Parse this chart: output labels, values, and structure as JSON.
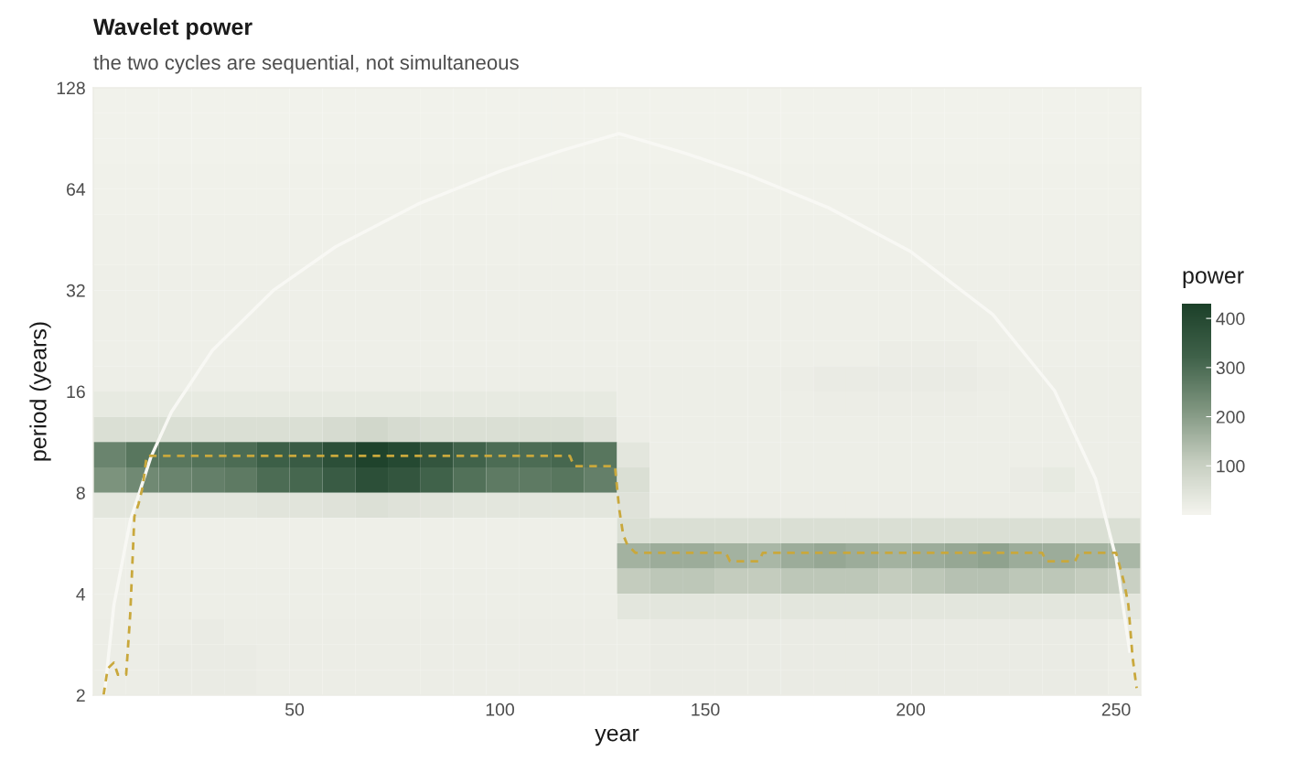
{
  "chart_data": [
    {
      "type": "heatmap",
      "title": "Wavelet power",
      "subtitle": "the two cycles are sequential, not simultaneous",
      "clabel": "power",
      "categories": [
        null,
        null,
        null,
        null,
        null,
        null,
        null,
        null,
        null,
        null,
        null,
        null,
        null,
        null,
        null,
        null,
        null,
        null,
        null,
        null,
        null,
        null,
        null,
        null,
        null,
        null,
        null,
        null,
        null,
        null,
        null,
        null
      ],
      "y_categories": [
        null,
        null,
        null,
        null,
        null,
        null,
        null,
        null,
        null,
        null,
        null,
        null,
        null,
        null,
        null,
        null,
        null,
        null,
        null,
        null,
        null,
        null,
        null,
        null
      ],
      "cells": [
        [
          8,
          8,
          8,
          8,
          8,
          8,
          8,
          8,
          8,
          8,
          8,
          8,
          8,
          8,
          8,
          8,
          8,
          8,
          8,
          8,
          8,
          8,
          8,
          8,
          8,
          8,
          8,
          8,
          8,
          8,
          8,
          8
        ],
        [
          8,
          8,
          8,
          8,
          8,
          8,
          8,
          8,
          8,
          8,
          8,
          8,
          8,
          8,
          8,
          8,
          8,
          8,
          8,
          8,
          8,
          8,
          8,
          8,
          8,
          8,
          8,
          8,
          8,
          8,
          8,
          8
        ],
        [
          8,
          8,
          8,
          8,
          8,
          8,
          8,
          8,
          8,
          8,
          8,
          8,
          8,
          8,
          8,
          8,
          8,
          8,
          8,
          8,
          8,
          8,
          8,
          8,
          8,
          8,
          8,
          8,
          8,
          8,
          8,
          8
        ],
        [
          10,
          10,
          10,
          10,
          10,
          10,
          10,
          10,
          10,
          10,
          10,
          10,
          10,
          10,
          10,
          10,
          10,
          10,
          10,
          10,
          10,
          10,
          10,
          10,
          10,
          10,
          10,
          10,
          10,
          10,
          10,
          10
        ],
        [
          10,
          10,
          10,
          10,
          10,
          10,
          10,
          10,
          10,
          10,
          10,
          10,
          10,
          10,
          10,
          10,
          10,
          10,
          10,
          10,
          10,
          10,
          10,
          10,
          10,
          10,
          10,
          10,
          10,
          10,
          10,
          10
        ],
        [
          12,
          12,
          12,
          12,
          12,
          12,
          12,
          12,
          12,
          12,
          12,
          12,
          12,
          12,
          12,
          12,
          12,
          12,
          12,
          12,
          12,
          12,
          12,
          12,
          12,
          12,
          12,
          12,
          12,
          12,
          12,
          12
        ],
        [
          12,
          12,
          12,
          12,
          12,
          12,
          12,
          12,
          12,
          12,
          12,
          12,
          12,
          12,
          12,
          12,
          12,
          12,
          12,
          12,
          12,
          12,
          12,
          12,
          12,
          12,
          12,
          12,
          12,
          12,
          12,
          12
        ],
        [
          14,
          14,
          14,
          14,
          14,
          14,
          14,
          14,
          14,
          14,
          14,
          14,
          14,
          14,
          14,
          14,
          14,
          14,
          14,
          14,
          14,
          14,
          14,
          14,
          14,
          14,
          14,
          14,
          14,
          14,
          14,
          14
        ],
        [
          14,
          14,
          14,
          14,
          14,
          14,
          14,
          14,
          14,
          14,
          14,
          14,
          14,
          14,
          14,
          14,
          14,
          14,
          14,
          14,
          14,
          14,
          14,
          14,
          14,
          14,
          14,
          14,
          14,
          14,
          14,
          14
        ],
        [
          14,
          14,
          14,
          14,
          14,
          14,
          14,
          14,
          14,
          14,
          14,
          14,
          14,
          14,
          14,
          14,
          14,
          14,
          14,
          14,
          14,
          14,
          14,
          14,
          14,
          14,
          14,
          14,
          14,
          14,
          14,
          14
        ],
        [
          15,
          15,
          15,
          15,
          15,
          15,
          15,
          15,
          15,
          15,
          15,
          15,
          15,
          15,
          15,
          15,
          15,
          15,
          15,
          15,
          15,
          15,
          15,
          15,
          20,
          20,
          20,
          15,
          15,
          15,
          15,
          15
        ],
        [
          16,
          16,
          16,
          16,
          16,
          16,
          16,
          16,
          16,
          16,
          16,
          16,
          16,
          16,
          16,
          16,
          16,
          16,
          16,
          16,
          16,
          20,
          25,
          25,
          25,
          25,
          25,
          20,
          16,
          16,
          16,
          16
        ],
        [
          30,
          30,
          30,
          30,
          30,
          30,
          30,
          30,
          30,
          30,
          30,
          30,
          30,
          30,
          30,
          30,
          16,
          16,
          16,
          16,
          16,
          16,
          20,
          20,
          20,
          20,
          20,
          16,
          16,
          16,
          16,
          16
        ],
        [
          60,
          60,
          60,
          60,
          60,
          60,
          60,
          70,
          80,
          70,
          60,
          60,
          60,
          60,
          60,
          50,
          20,
          16,
          16,
          16,
          16,
          16,
          16,
          16,
          16,
          16,
          16,
          16,
          16,
          16,
          16,
          16
        ],
        [
          250,
          280,
          280,
          290,
          300,
          330,
          340,
          380,
          420,
          400,
          360,
          320,
          300,
          300,
          310,
          280,
          40,
          16,
          16,
          16,
          16,
          16,
          16,
          16,
          16,
          16,
          16,
          16,
          16,
          16,
          16,
          16
        ],
        [
          220,
          240,
          250,
          260,
          270,
          300,
          310,
          340,
          380,
          360,
          320,
          290,
          270,
          270,
          280,
          260,
          60,
          16,
          16,
          16,
          16,
          16,
          16,
          16,
          16,
          16,
          16,
          16,
          25,
          30,
          16,
          16
        ],
        [
          40,
          40,
          40,
          40,
          40,
          45,
          45,
          50,
          55,
          50,
          45,
          40,
          40,
          40,
          40,
          40,
          50,
          20,
          20,
          20,
          20,
          20,
          20,
          20,
          20,
          20,
          20,
          20,
          20,
          20,
          20,
          20
        ],
        [
          15,
          15,
          15,
          15,
          15,
          15,
          15,
          15,
          15,
          15,
          15,
          15,
          15,
          15,
          15,
          15,
          60,
          60,
          60,
          60,
          60,
          60,
          60,
          60,
          60,
          60,
          60,
          60,
          60,
          60,
          60,
          60
        ],
        [
          15,
          15,
          15,
          15,
          15,
          15,
          15,
          15,
          15,
          15,
          15,
          15,
          15,
          15,
          15,
          15,
          160,
          170,
          170,
          160,
          150,
          170,
          180,
          170,
          160,
          170,
          180,
          190,
          170,
          170,
          160,
          150
        ],
        [
          18,
          18,
          18,
          18,
          18,
          18,
          18,
          18,
          18,
          18,
          18,
          18,
          18,
          18,
          18,
          18,
          110,
          120,
          120,
          110,
          110,
          120,
          120,
          120,
          110,
          120,
          130,
          130,
          120,
          120,
          110,
          100
        ],
        [
          18,
          18,
          18,
          18,
          18,
          18,
          18,
          18,
          18,
          18,
          18,
          18,
          18,
          18,
          18,
          18,
          40,
          40,
          40,
          40,
          40,
          40,
          40,
          40,
          40,
          40,
          40,
          40,
          40,
          40,
          40,
          40
        ],
        [
          20,
          20,
          20,
          25,
          20,
          20,
          20,
          20,
          20,
          20,
          20,
          20,
          20,
          20,
          20,
          20,
          20,
          25,
          25,
          25,
          25,
          25,
          25,
          25,
          25,
          25,
          25,
          25,
          25,
          25,
          25,
          20
        ],
        [
          20,
          20,
          25,
          25,
          25,
          20,
          20,
          20,
          20,
          20,
          20,
          20,
          20,
          20,
          20,
          20,
          20,
          25,
          25,
          25,
          25,
          25,
          25,
          25,
          25,
          25,
          25,
          25,
          25,
          25,
          25,
          20
        ],
        [
          20,
          20,
          25,
          25,
          25,
          20,
          20,
          20,
          20,
          20,
          20,
          20,
          20,
          20,
          20,
          20,
          20,
          25,
          25,
          25,
          25,
          25,
          25,
          25,
          25,
          25,
          25,
          25,
          25,
          25,
          25,
          20
        ]
      ],
      "clim": [
        0,
        430
      ],
      "cticks": [
        100,
        200,
        300,
        400
      ]
    },
    {
      "type": "line",
      "xlabel": "year",
      "ylabel": "period (years)",
      "xlim": [
        1,
        256
      ],
      "xticks": [
        50,
        100,
        150,
        200,
        250
      ],
      "ylim": [
        2,
        128
      ],
      "yticks": [
        2,
        4,
        8,
        16,
        32,
        64,
        128
      ],
      "log": "y",
      "grid": false,
      "series": [
        {
          "color": "#f8f8f4",
          "line_style": "solid",
          "x": [
            3.7,
            6,
            10,
            15,
            20,
            30,
            45,
            60,
            80,
            100,
            115,
            129,
            145,
            160,
            180,
            200,
            220,
            235,
            245,
            250,
            253.3
          ],
          "values": [
            2,
            3.7,
            6.6,
            10.2,
            13.9,
            21.2,
            32.1,
            43.1,
            57.7,
            72.3,
            83.3,
            93.6,
            81.9,
            70.9,
            56.3,
            41.7,
            27.1,
            16.1,
            8.8,
            5.1,
            2.7
          ]
        },
        {
          "color": "#c9a83c",
          "line_style": "dashed",
          "x": [
            3.5,
            4.5,
            6,
            7,
            9,
            10,
            11,
            12,
            13,
            14,
            117,
            118,
            119,
            128,
            129,
            130,
            131,
            133,
            155,
            156,
            163,
            164,
            232,
            233,
            240,
            241,
            250,
            252,
            253,
            254,
            255
          ],
          "values": [
            2,
            2.4,
            2.5,
            2.3,
            2.3,
            3.5,
            6.8,
            7.4,
            8.3,
            10.3,
            10.3,
            9.6,
            9.6,
            9.6,
            7.2,
            6.0,
            5.6,
            5.3,
            5.3,
            5.0,
            5.0,
            5.3,
            5.3,
            5.0,
            5.0,
            5.3,
            5.3,
            4.3,
            3.7,
            2.6,
            2.1
          ]
        }
      ]
    }
  ]
}
